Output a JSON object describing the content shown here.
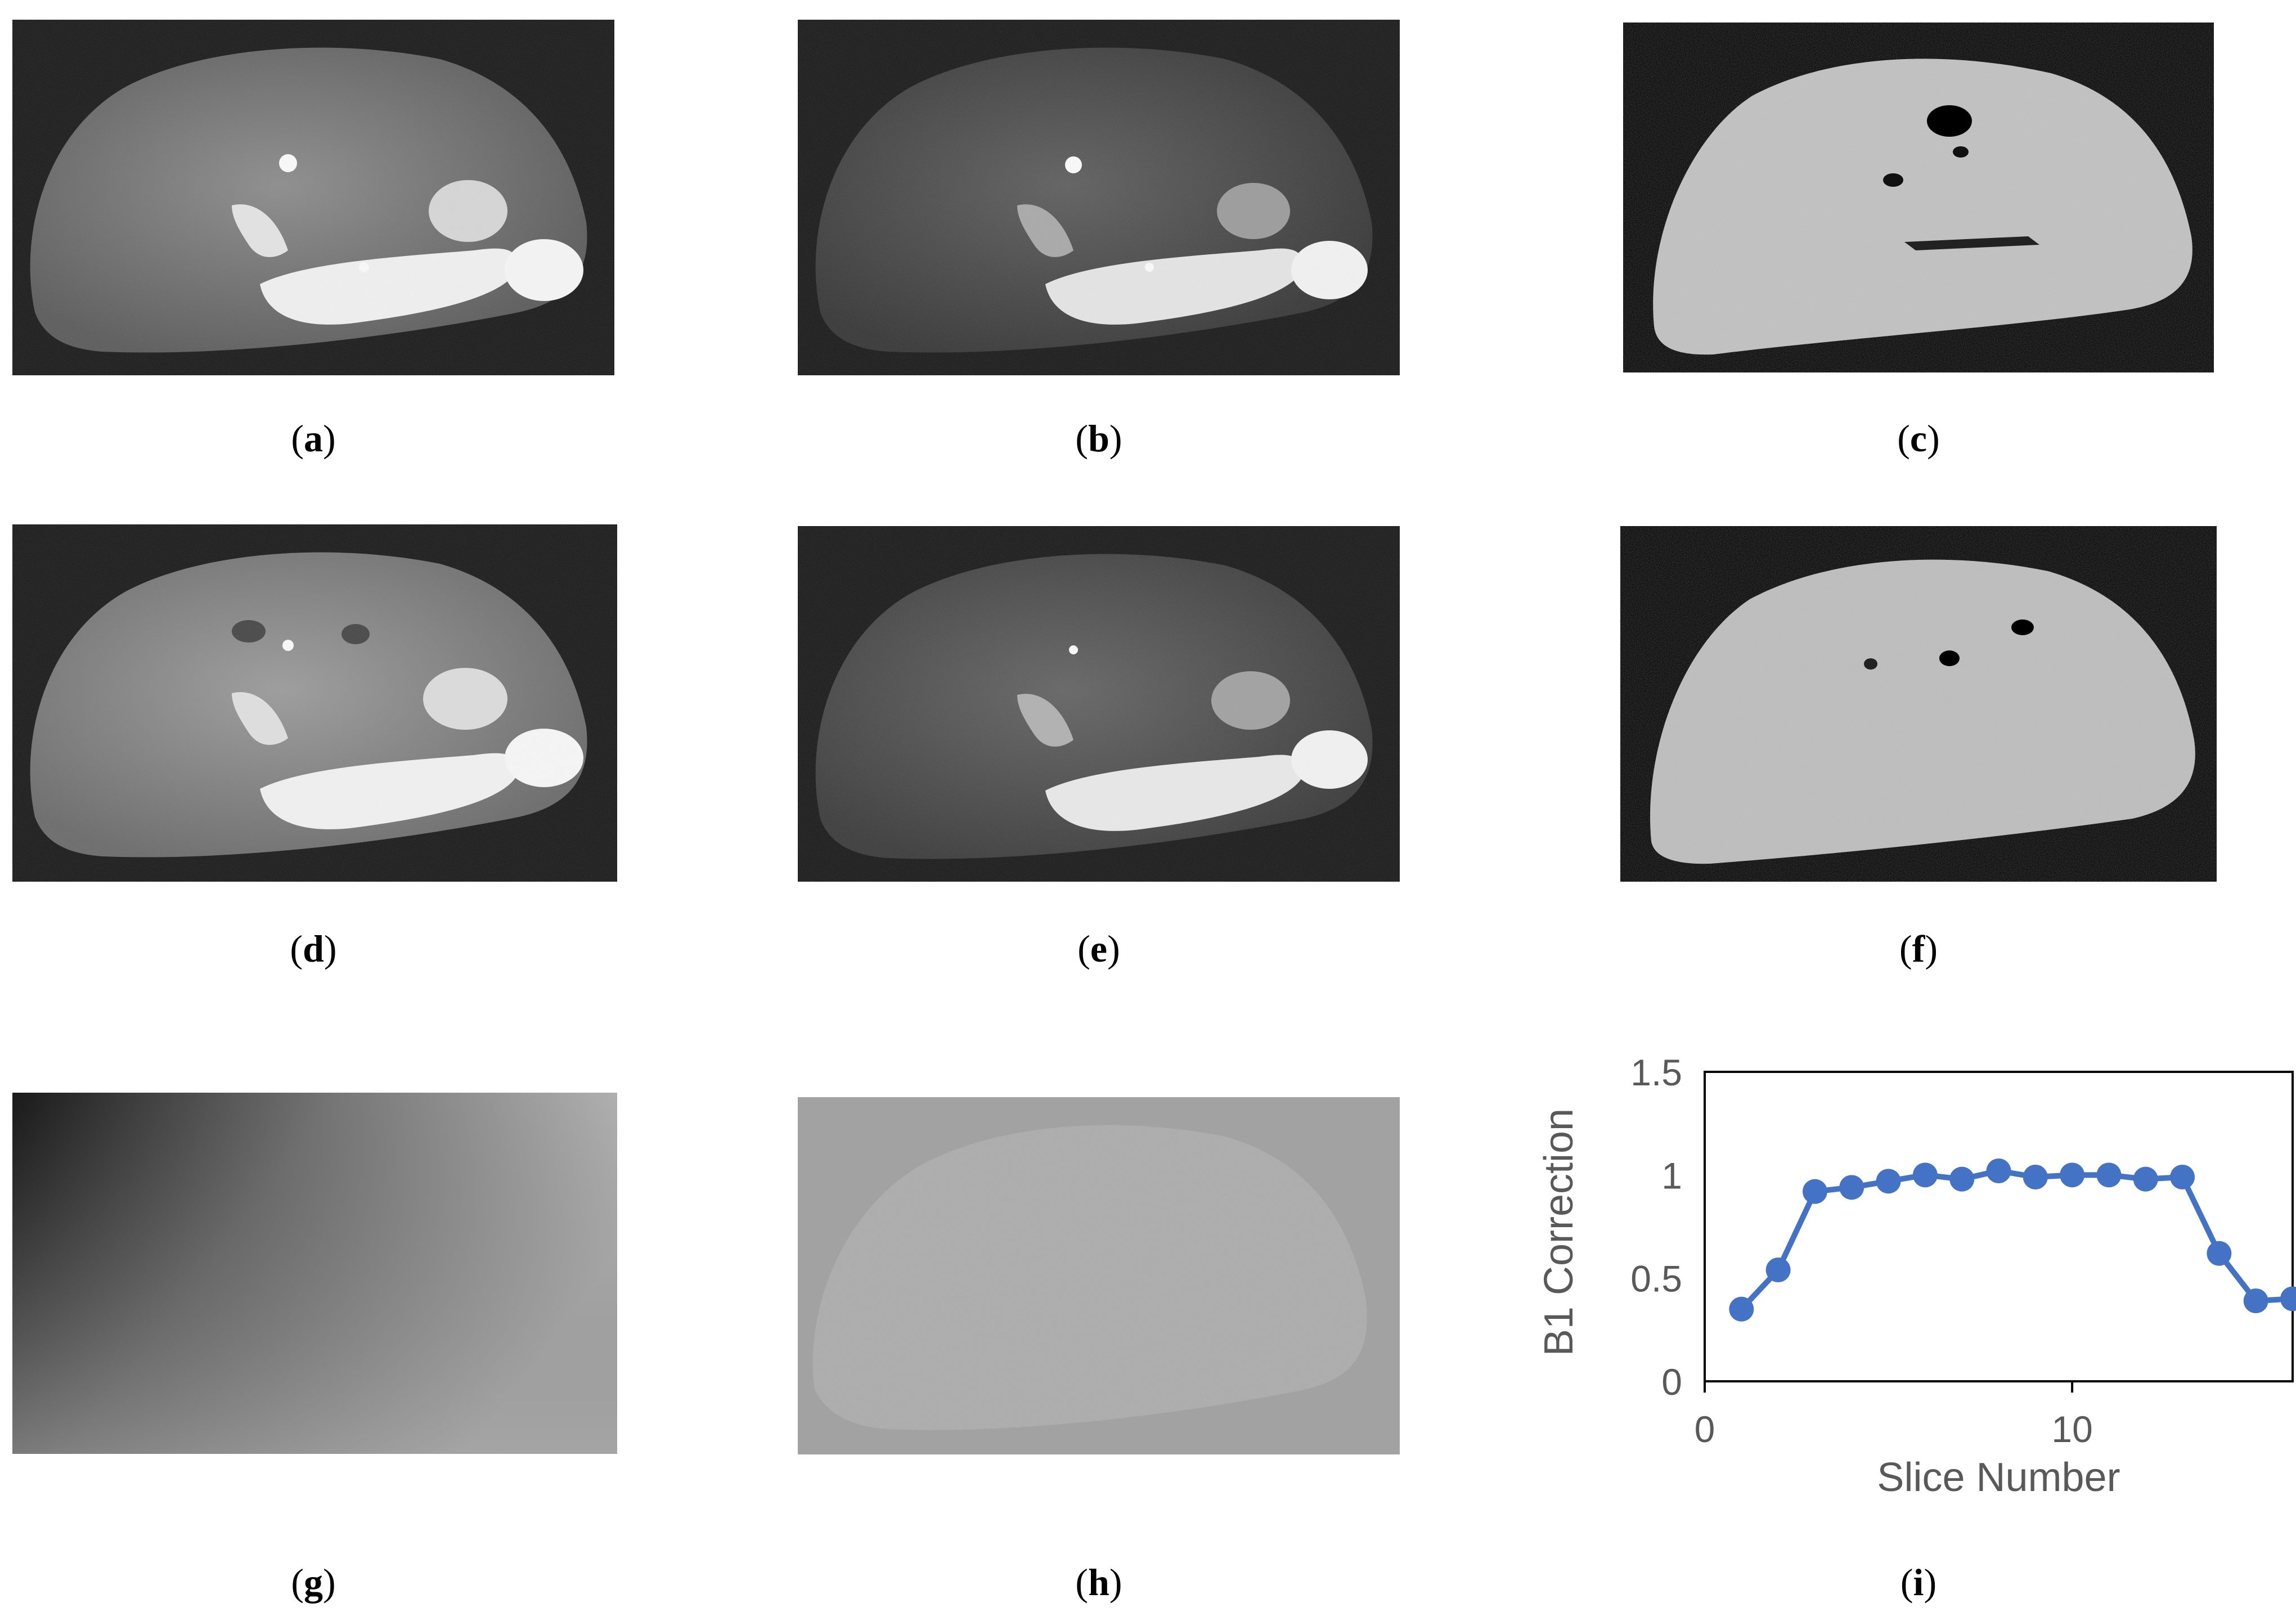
{
  "figure": {
    "panels": [
      {
        "id": "a",
        "caption_letter": "a",
        "kind": "mri-magnitude-image"
      },
      {
        "id": "b",
        "caption_letter": "b",
        "kind": "mri-magnitude-image"
      },
      {
        "id": "c",
        "caption_letter": "c",
        "kind": "parameter-map"
      },
      {
        "id": "d",
        "caption_letter": "d",
        "kind": "mri-magnitude-image"
      },
      {
        "id": "e",
        "caption_letter": "e",
        "kind": "mri-magnitude-image"
      },
      {
        "id": "f",
        "caption_letter": "f",
        "kind": "parameter-map"
      },
      {
        "id": "g",
        "caption_letter": "g",
        "kind": "smooth-gradient-map"
      },
      {
        "id": "h",
        "caption_letter": "h",
        "kind": "difference-map"
      },
      {
        "id": "i",
        "caption_letter": "i",
        "kind": "line-chart"
      }
    ]
  },
  "chart_data": {
    "type": "line",
    "title": "",
    "xlabel": "Slice Number",
    "ylabel": "B1 Correction",
    "xlim": [
      0,
      16
    ],
    "ylim": [
      0,
      1.5
    ],
    "x_ticks": [
      "0",
      "10"
    ],
    "y_ticks": [
      "0",
      "0.5",
      "1",
      "1.5"
    ],
    "grid": false,
    "legend": "none",
    "series": [
      {
        "color": "#4472c4",
        "marker": "circle",
        "x": [
          1,
          2,
          3,
          4,
          5,
          6,
          7,
          8,
          9,
          10,
          11,
          12,
          13,
          14,
          15,
          16
        ],
        "values": [
          0.35,
          0.54,
          0.92,
          0.94,
          0.97,
          1.0,
          0.98,
          1.02,
          0.99,
          1.0,
          1.0,
          0.98,
          0.99,
          0.62,
          0.39,
          0.4
        ]
      }
    ]
  }
}
